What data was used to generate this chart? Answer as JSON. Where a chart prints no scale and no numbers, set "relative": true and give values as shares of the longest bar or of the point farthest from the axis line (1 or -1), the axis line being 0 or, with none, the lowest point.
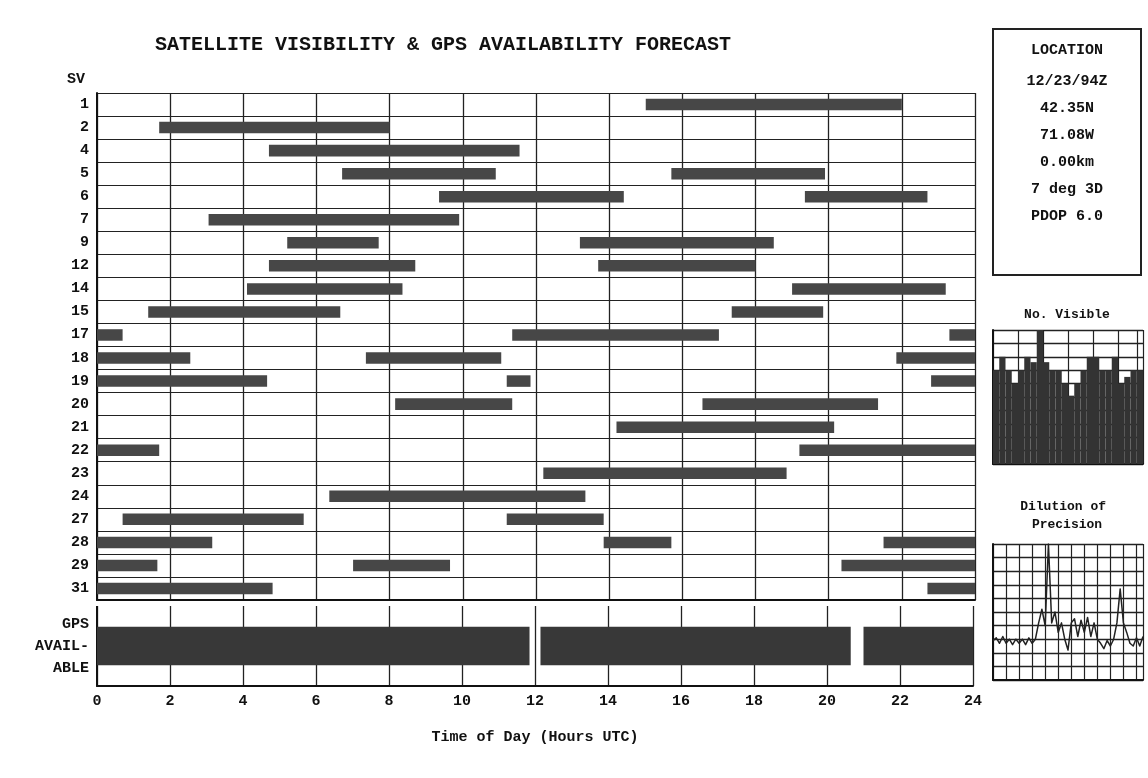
{
  "chart_data": [
    {
      "type": "bar",
      "orientation": "horizontal",
      "title": "SATELLITE VISIBILITY & GPS AVAILABILITY FORECAST",
      "ylabel": "SV",
      "categories": [
        "1",
        "2",
        "4",
        "5",
        "6",
        "7",
        "9",
        "12",
        "14",
        "15",
        "17",
        "18",
        "19",
        "20",
        "21",
        "22",
        "23",
        "24",
        "27",
        "28",
        "29",
        "31"
      ],
      "series": [
        {
          "color": "#474747",
          "base": [
            15.0,
            1.7,
            4.7,
            6.7,
            9.35,
            3.05,
            5.2,
            4.7,
            4.1,
            1.4,
            0,
            0,
            0,
            8.15,
            14.2,
            0,
            12.2,
            6.35,
            0.7,
            0,
            0,
            0
          ],
          "values": [
            7.0,
            6.3,
            6.85,
            4.2,
            5.05,
            6.85,
            2.5,
            4.0,
            4.25,
            5.25,
            0.7,
            2.55,
            4.65,
            3.2,
            5.95,
            1.7,
            6.65,
            7.0,
            4.95,
            3.15,
            1.65,
            4.8
          ]
        },
        {
          "color": "#474747",
          "base": [
            null,
            null,
            null,
            15.7,
            19.35,
            null,
            13.2,
            13.7,
            19.0,
            17.35,
            11.35,
            7.35,
            11.2,
            16.55,
            null,
            19.2,
            null,
            null,
            11.2,
            13.85,
            7.0,
            22.7
          ],
          "values": [
            null,
            null,
            null,
            4.2,
            3.35,
            null,
            5.3,
            4.3,
            4.2,
            2.5,
            5.65,
            3.7,
            0.65,
            4.8,
            null,
            4.8,
            null,
            null,
            2.65,
            1.85,
            2.65,
            1.3
          ]
        },
        {
          "color": "#474747",
          "base": [
            null,
            null,
            null,
            null,
            null,
            null,
            null,
            null,
            null,
            null,
            23.3,
            21.85,
            22.8,
            null,
            null,
            null,
            null,
            null,
            null,
            21.5,
            20.35,
            null
          ],
          "values": [
            null,
            null,
            null,
            null,
            null,
            null,
            null,
            null,
            null,
            null,
            0.7,
            2.15,
            1.2,
            null,
            null,
            null,
            null,
            null,
            null,
            2.5,
            3.65,
            null
          ]
        }
      ],
      "xlim": [
        0,
        24
      ],
      "xticks": [
        0,
        2,
        4,
        6,
        8,
        10,
        12,
        14,
        16,
        18,
        20,
        22,
        24
      ],
      "grid": true,
      "tick_labels": "y"
    },
    {
      "type": "bar",
      "orientation": "horizontal",
      "xlabel": "Time of Day (Hours UTC)",
      "categories": [
        "GPS AVAIL-ABLE"
      ],
      "series": [
        {
          "color": "#383838",
          "base": [
            0
          ],
          "values": [
            11.85
          ]
        },
        {
          "color": "#383838",
          "base": [
            12.15
          ],
          "values": [
            8.5
          ]
        },
        {
          "color": "#383838",
          "base": [
            21.0
          ],
          "values": [
            3.0
          ]
        }
      ],
      "xlim": [
        0,
        24
      ],
      "xticks": [
        0,
        2,
        4,
        6,
        8,
        10,
        12,
        14,
        16,
        18,
        20,
        22,
        24
      ],
      "grid": "x"
    },
    {
      "type": "other",
      "title": "LOCATION",
      "annotations": [
        "12/23/94Z",
        "42.35N",
        "71.08W",
        "0.00km",
        "7 deg 3D",
        "PDOP 6.0"
      ]
    },
    {
      "type": "bar",
      "title": "No. Visible",
      "relative": true,
      "color": "#333333",
      "grid": true,
      "categories": [
        null,
        null,
        null,
        null,
        null,
        null,
        null,
        null,
        null,
        null,
        null,
        null,
        null,
        null,
        null,
        null,
        null,
        null,
        null,
        null,
        null,
        null,
        null,
        null
      ],
      "values": [
        0.7,
        0.8,
        0.7,
        0.6,
        0.7,
        0.8,
        0.76,
        1.0,
        0.76,
        0.7,
        0.7,
        0.6,
        0.51,
        0.6,
        0.7,
        0.8,
        0.8,
        0.7,
        0.7,
        0.8,
        0.6,
        0.65,
        0.7,
        0.7
      ]
    },
    {
      "type": "line",
      "title": "Dilution of Precision",
      "relative": true,
      "color": "#222222",
      "grid": true,
      "marker": "none",
      "categories": [
        null,
        null,
        null,
        null,
        null,
        null,
        null,
        null,
        null,
        null,
        null,
        null,
        null,
        null,
        null,
        null,
        null,
        null,
        null,
        null,
        null,
        null,
        null,
        null,
        null,
        null,
        null,
        null,
        null,
        null,
        null,
        null,
        null,
        null,
        null,
        null,
        null,
        null,
        null,
        null,
        null,
        null,
        null,
        null,
        null,
        null,
        null
      ],
      "values": [
        0.29,
        0.31,
        0.27,
        0.32,
        0.27,
        0.3,
        0.26,
        0.3,
        0.27,
        0.3,
        0.26,
        0.31,
        0.27,
        0.3,
        0.42,
        0.52,
        0.4,
        1.0,
        0.42,
        0.5,
        0.35,
        0.42,
        0.3,
        0.22,
        0.42,
        0.45,
        0.32,
        0.44,
        0.35,
        0.46,
        0.32,
        0.42,
        0.3,
        0.27,
        0.23,
        0.29,
        0.25,
        0.3,
        0.42,
        0.67,
        0.42,
        0.35,
        0.27,
        0.25,
        0.31,
        0.25,
        0.32
      ]
    }
  ]
}
